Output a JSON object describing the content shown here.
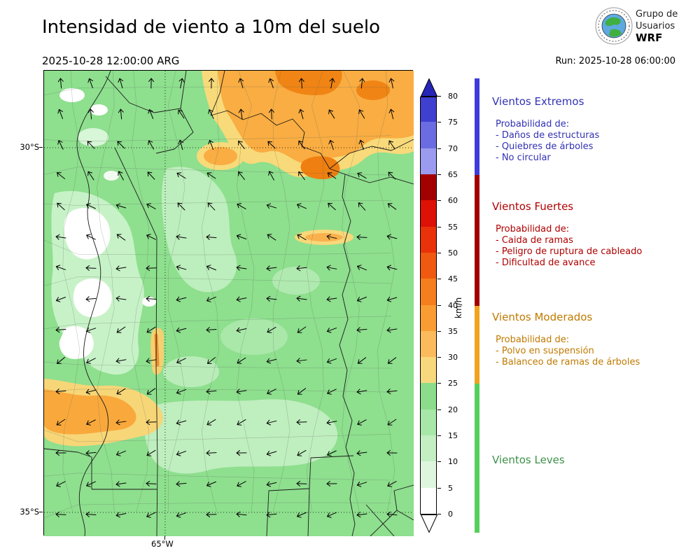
{
  "header": {
    "title": "Intensidad de viento a 10m del suelo",
    "valid_time": "2025-10-28 12:00:00 ARG",
    "run_label": "Run: 2025-10-28 06:00:00",
    "logo": {
      "line1": "Grupo de",
      "line2": "Usuarios",
      "line3": "WRF"
    }
  },
  "map": {
    "lat_top_label": "30°S",
    "lat_bottom_label": "35°S",
    "lon_label": "65°W"
  },
  "colorbar": {
    "unit": "km/h",
    "ticks": [
      0,
      5,
      10,
      15,
      20,
      25,
      30,
      35,
      40,
      45,
      50,
      55,
      60,
      65,
      70,
      75,
      80
    ],
    "colors": [
      "#ffffff",
      "#def6de",
      "#c3efc3",
      "#a7e7a7",
      "#8bdd8b",
      "#f8d87d",
      "#fbbb5c",
      "#f99d33",
      "#f57f1c",
      "#ef5a10",
      "#e93209",
      "#dd1105",
      "#a30000",
      "#9b9bef",
      "#6c6ce2",
      "#4040d0"
    ],
    "over_color": "#2525b8",
    "under_color": "#ffffff"
  },
  "legend": {
    "categories": [
      {
        "name": "Vientos Extremos",
        "text_color": "#3232b4",
        "bar_color": "#3c3cdc",
        "range": [
          65,
          87
        ],
        "prob_label": "Probabilidad de:",
        "items": [
          "- Daños de estructuras",
          "- Quiebres de árboles",
          "- No circular"
        ]
      },
      {
        "name": "Vientos Fuertes",
        "text_color": "#b00000",
        "bar_color": "#a00000",
        "range": [
          40,
          65
        ],
        "prob_label": "Probabilidad de:",
        "items": [
          "- Caida de ramas",
          "- Peligro de ruptura de cableado",
          "- Dificultad de avance"
        ]
      },
      {
        "name": "Vientos Moderados",
        "text_color": "#c07a00",
        "bar_color": "#f2a21c",
        "range": [
          25,
          40
        ],
        "prob_label": "Probabilidad de:",
        "items": [
          "- Polvo en suspensión",
          "- Balanceo de ramas de árboles"
        ]
      },
      {
        "name": "Vientos Leves",
        "text_color": "#3d9148",
        "bar_color": "#55cf5c",
        "range": [
          -3.5,
          25
        ],
        "prob_label": "",
        "items": []
      }
    ]
  }
}
